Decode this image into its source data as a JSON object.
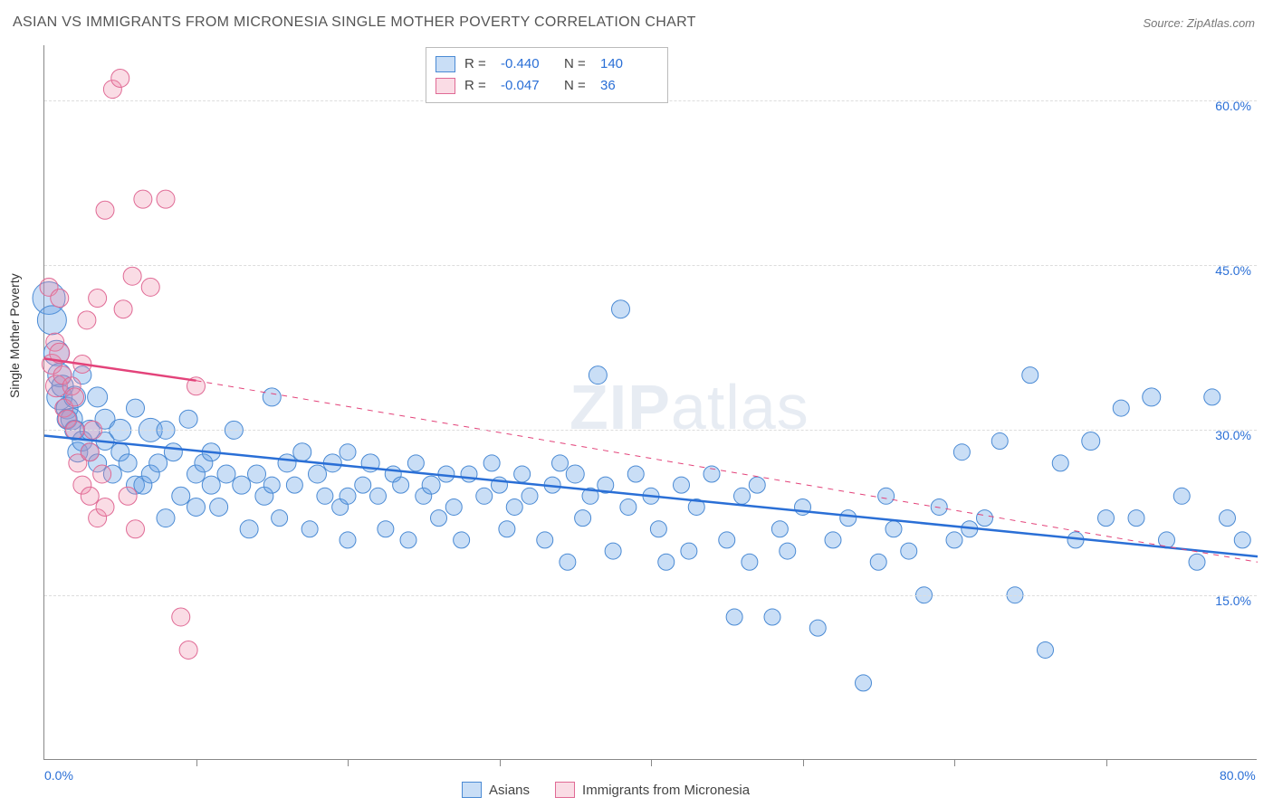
{
  "title": "ASIAN VS IMMIGRANTS FROM MICRONESIA SINGLE MOTHER POVERTY CORRELATION CHART",
  "source": "Source: ZipAtlas.com",
  "watermark": {
    "part1": "ZIP",
    "part2": "atlas"
  },
  "chart": {
    "type": "scatter",
    "ylabel": "Single Mother Poverty",
    "background_color": "#ffffff",
    "grid_color": "#dddddd",
    "axis_color": "#888888",
    "label_color": "#2a6fd6",
    "label_fontsize": 14,
    "title_fontsize": 16,
    "xlim": [
      0,
      80
    ],
    "ylim": [
      0,
      65
    ],
    "yticks": [
      {
        "value": 15,
        "label": "15.0%"
      },
      {
        "value": 30,
        "label": "30.0%"
      },
      {
        "value": 45,
        "label": "45.0%"
      },
      {
        "value": 60,
        "label": "60.0%"
      }
    ],
    "xticks_minor": [
      10,
      20,
      30,
      40,
      50,
      60,
      70
    ],
    "xlabels": [
      {
        "value": 0,
        "label": "0.0%"
      },
      {
        "value": 80,
        "label": "80.0%"
      }
    ],
    "series": [
      {
        "name": "Asians",
        "fill_color": "rgba(100,160,230,0.35)",
        "stroke_color": "#4a8ad4",
        "marker_radius_base": 9,
        "R": "-0.440",
        "N": "140",
        "trend": {
          "x1": 0,
          "y1": 29.5,
          "x2": 80,
          "y2": 18.5,
          "color": "#2a6fd6",
          "width": 2.5,
          "dash": "none"
        },
        "trend_ext": null,
        "points": [
          [
            0.3,
            42,
            18
          ],
          [
            0.5,
            40,
            16
          ],
          [
            0.8,
            37,
            14
          ],
          [
            1,
            35,
            13
          ],
          [
            1,
            33,
            14
          ],
          [
            1.2,
            34,
            12
          ],
          [
            1.5,
            32,
            12
          ],
          [
            1.5,
            31,
            11
          ],
          [
            1.8,
            31,
            12
          ],
          [
            2,
            30,
            11
          ],
          [
            2,
            33,
            12
          ],
          [
            2.2,
            28,
            11
          ],
          [
            2.5,
            29,
            11
          ],
          [
            2.5,
            35,
            10
          ],
          [
            3,
            30,
            11
          ],
          [
            3,
            28,
            10
          ],
          [
            3.5,
            33,
            11
          ],
          [
            3.5,
            27,
            10
          ],
          [
            4,
            31,
            11
          ],
          [
            4,
            29,
            10
          ],
          [
            4.5,
            26,
            10
          ],
          [
            5,
            28,
            10
          ],
          [
            5,
            30,
            12
          ],
          [
            5.5,
            27,
            10
          ],
          [
            6,
            25,
            10
          ],
          [
            6,
            32,
            10
          ],
          [
            6.5,
            25,
            10
          ],
          [
            7,
            30,
            13
          ],
          [
            7,
            26,
            10
          ],
          [
            7.5,
            27,
            10
          ],
          [
            8,
            30,
            10
          ],
          [
            8,
            22,
            10
          ],
          [
            8.5,
            28,
            10
          ],
          [
            9,
            24,
            10
          ],
          [
            9.5,
            31,
            10
          ],
          [
            10,
            26,
            10
          ],
          [
            10,
            23,
            10
          ],
          [
            10.5,
            27,
            10
          ],
          [
            11,
            25,
            10
          ],
          [
            11,
            28,
            10
          ],
          [
            11.5,
            23,
            10
          ],
          [
            12,
            26,
            10
          ],
          [
            12.5,
            30,
            10
          ],
          [
            13,
            25,
            10
          ],
          [
            13.5,
            21,
            10
          ],
          [
            14,
            26,
            10
          ],
          [
            14.5,
            24,
            10
          ],
          [
            15,
            33,
            10
          ],
          [
            15,
            25,
            9
          ],
          [
            15.5,
            22,
            9
          ],
          [
            16,
            27,
            10
          ],
          [
            16.5,
            25,
            9
          ],
          [
            17,
            28,
            10
          ],
          [
            17.5,
            21,
            9
          ],
          [
            18,
            26,
            10
          ],
          [
            18.5,
            24,
            9
          ],
          [
            19,
            27,
            10
          ],
          [
            19.5,
            23,
            9
          ],
          [
            20,
            28,
            9
          ],
          [
            20,
            24,
            9
          ],
          [
            20,
            20,
            9
          ],
          [
            21,
            25,
            9
          ],
          [
            21.5,
            27,
            10
          ],
          [
            22,
            24,
            9
          ],
          [
            22.5,
            21,
            9
          ],
          [
            23,
            26,
            9
          ],
          [
            23.5,
            25,
            9
          ],
          [
            24,
            20,
            9
          ],
          [
            24.5,
            27,
            9
          ],
          [
            25,
            24,
            9
          ],
          [
            25.5,
            25,
            10
          ],
          [
            26,
            22,
            9
          ],
          [
            26.5,
            26,
            9
          ],
          [
            27,
            23,
            9
          ],
          [
            27.5,
            20,
            9
          ],
          [
            28,
            26,
            9
          ],
          [
            29,
            24,
            9
          ],
          [
            29.5,
            27,
            9
          ],
          [
            30,
            25,
            9
          ],
          [
            30.5,
            21,
            9
          ],
          [
            31,
            23,
            9
          ],
          [
            31.5,
            26,
            9
          ],
          [
            32,
            24,
            9
          ],
          [
            33,
            20,
            9
          ],
          [
            33.5,
            25,
            9
          ],
          [
            34,
            27,
            9
          ],
          [
            34.5,
            18,
            9
          ],
          [
            35,
            26,
            10
          ],
          [
            35.5,
            22,
            9
          ],
          [
            36,
            24,
            9
          ],
          [
            36.5,
            35,
            10
          ],
          [
            37,
            25,
            9
          ],
          [
            37.5,
            19,
            9
          ],
          [
            38,
            41,
            10
          ],
          [
            38.5,
            23,
            9
          ],
          [
            39,
            26,
            9
          ],
          [
            40,
            24,
            9
          ],
          [
            40.5,
            21,
            9
          ],
          [
            41,
            18,
            9
          ],
          [
            42,
            25,
            9
          ],
          [
            42.5,
            19,
            9
          ],
          [
            43,
            23,
            9
          ],
          [
            44,
            26,
            9
          ],
          [
            45,
            20,
            9
          ],
          [
            45.5,
            13,
            9
          ],
          [
            46,
            24,
            9
          ],
          [
            46.5,
            18,
            9
          ],
          [
            47,
            25,
            9
          ],
          [
            48,
            13,
            9
          ],
          [
            48.5,
            21,
            9
          ],
          [
            49,
            19,
            9
          ],
          [
            50,
            23,
            9
          ],
          [
            51,
            12,
            9
          ],
          [
            52,
            20,
            9
          ],
          [
            53,
            22,
            9
          ],
          [
            54,
            7,
            9
          ],
          [
            55,
            18,
            9
          ],
          [
            55.5,
            24,
            9
          ],
          [
            56,
            21,
            9
          ],
          [
            57,
            19,
            9
          ],
          [
            58,
            15,
            9
          ],
          [
            59,
            23,
            9
          ],
          [
            60,
            20,
            9
          ],
          [
            60.5,
            28,
            9
          ],
          [
            61,
            21,
            9
          ],
          [
            62,
            22,
            9
          ],
          [
            63,
            29,
            9
          ],
          [
            64,
            15,
            9
          ],
          [
            65,
            35,
            9
          ],
          [
            66,
            10,
            9
          ],
          [
            67,
            27,
            9
          ],
          [
            68,
            20,
            9
          ],
          [
            69,
            29,
            10
          ],
          [
            70,
            22,
            9
          ],
          [
            71,
            32,
            9
          ],
          [
            72,
            22,
            9
          ],
          [
            73,
            33,
            10
          ],
          [
            74,
            20,
            9
          ],
          [
            75,
            24,
            9
          ],
          [
            76,
            18,
            9
          ],
          [
            77,
            33,
            9
          ],
          [
            78,
            22,
            9
          ],
          [
            79,
            20,
            9
          ]
        ]
      },
      {
        "name": "Immigrants from Micronesia",
        "fill_color": "rgba(240,140,170,0.30)",
        "stroke_color": "#e06a95",
        "marker_radius_base": 9,
        "R": "-0.047",
        "N": "36",
        "trend": {
          "x1": 0,
          "y1": 36.5,
          "x2": 10,
          "y2": 34.5,
          "color": "#e3437a",
          "width": 2.5,
          "dash": "none"
        },
        "trend_ext": {
          "x1": 10,
          "y1": 34.5,
          "x2": 80,
          "y2": 18,
          "color": "#e3437a",
          "width": 1,
          "dash": "6 6"
        },
        "points": [
          [
            0.3,
            43,
            10
          ],
          [
            0.5,
            36,
            11
          ],
          [
            0.7,
            38,
            10
          ],
          [
            0.8,
            34,
            12
          ],
          [
            1,
            37,
            11
          ],
          [
            1,
            42,
            10
          ],
          [
            1.2,
            35,
            10
          ],
          [
            1.3,
            32,
            10
          ],
          [
            1.5,
            31,
            10
          ],
          [
            1.8,
            34,
            10
          ],
          [
            2,
            33,
            10
          ],
          [
            2,
            30,
            10
          ],
          [
            2.2,
            27,
            10
          ],
          [
            2.5,
            36,
            10
          ],
          [
            2.5,
            25,
            10
          ],
          [
            2.8,
            40,
            10
          ],
          [
            3,
            28,
            10
          ],
          [
            3,
            24,
            10
          ],
          [
            3.2,
            30,
            10
          ],
          [
            3.5,
            22,
            10
          ],
          [
            3.5,
            42,
            10
          ],
          [
            3.8,
            26,
            10
          ],
          [
            4,
            50,
            10
          ],
          [
            4,
            23,
            10
          ],
          [
            4.5,
            61,
            10
          ],
          [
            5,
            62,
            10
          ],
          [
            5.2,
            41,
            10
          ],
          [
            5.5,
            24,
            10
          ],
          [
            5.8,
            44,
            10
          ],
          [
            6,
            21,
            10
          ],
          [
            6.5,
            51,
            10
          ],
          [
            7,
            43,
            10
          ],
          [
            8,
            51,
            10
          ],
          [
            9,
            13,
            10
          ],
          [
            9.5,
            10,
            10
          ],
          [
            10,
            34,
            10
          ]
        ]
      }
    ]
  },
  "legend_bottom": {
    "items": [
      {
        "swatch": "blue",
        "label": "Asians"
      },
      {
        "swatch": "pink",
        "label": "Immigrants from Micronesia"
      }
    ]
  }
}
